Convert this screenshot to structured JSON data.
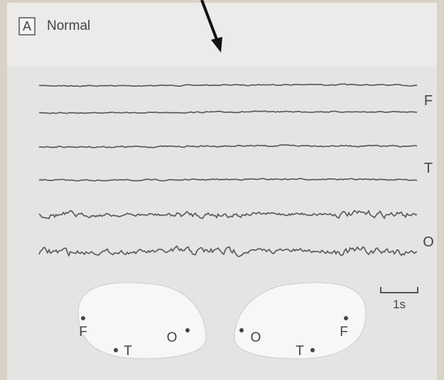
{
  "panel": {
    "label": "A",
    "title": "Normal"
  },
  "channels": [
    {
      "label": "F"
    },
    {
      "label": "T"
    },
    {
      "label": "O"
    }
  ],
  "scale_bar": {
    "label": "1s"
  },
  "brains": [
    {
      "markers": [
        "F",
        "T",
        "O"
      ]
    },
    {
      "markers": [
        "O",
        "T",
        "F"
      ]
    }
  ]
}
